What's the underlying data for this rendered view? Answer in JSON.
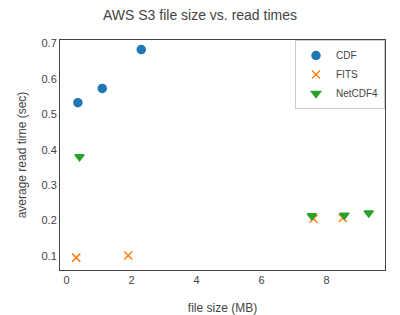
{
  "chart_data": {
    "type": "scatter",
    "title": "AWS S3 file size vs. read times",
    "xlabel": "file size (MB)",
    "ylabel": "average read time (sec)",
    "xlim": [
      -0.2,
      9.8
    ],
    "ylim": [
      0.06,
      0.71
    ],
    "xticks": [
      0,
      2,
      4,
      6,
      8
    ],
    "yticks": [
      0.1,
      0.2,
      0.3,
      0.4,
      0.5,
      0.6,
      0.7
    ],
    "grid": false,
    "legend": "upper right",
    "series": [
      {
        "name": "CDF",
        "color": "#1f77b4",
        "marker": "circle",
        "x": [
          0.35,
          1.1,
          2.3
        ],
        "values": [
          0.533,
          0.573,
          0.683
        ]
      },
      {
        "name": "FITS",
        "color": "#ff7f0e",
        "marker": "x",
        "x": [
          0.3,
          1.9,
          7.6,
          8.5
        ],
        "values": [
          0.095,
          0.101,
          0.205,
          0.207
        ]
      },
      {
        "name": "NetCDF4",
        "color": "#2ca02c",
        "marker": "triangle-down",
        "x": [
          0.4,
          7.55,
          8.55,
          9.3
        ],
        "values": [
          0.38,
          0.213,
          0.215,
          0.221
        ]
      }
    ]
  }
}
